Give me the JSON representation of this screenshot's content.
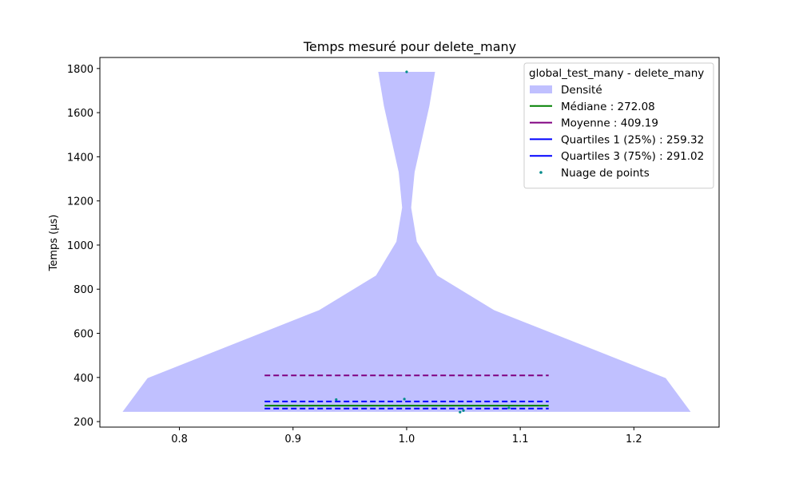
{
  "chart_data": {
    "type": "violin",
    "title": "Temps mesuré pour delete_many",
    "xlabel": "",
    "ylabel": "Temps (µs)",
    "xlim": [
      0.73,
      1.275
    ],
    "ylim": [
      175,
      1850
    ],
    "x_ticks": [
      0.8,
      0.9,
      1.0,
      1.1,
      1.2
    ],
    "x_tick_labels": [
      "0.8",
      "0.9",
      "1.0",
      "1.1",
      "1.2"
    ],
    "y_ticks": [
      200,
      400,
      600,
      800,
      1000,
      1200,
      1400,
      1600,
      1800
    ],
    "y_tick_labels": [
      "200",
      "400",
      "600",
      "800",
      "1000",
      "1200",
      "1400",
      "1600",
      "1800"
    ],
    "grid": false,
    "legend_position": "top-right",
    "legend_title": "global_test_many - delete_many",
    "violin": {
      "center": 1.0,
      "color": "#c0c0ff",
      "profile": [
        {
          "y": 244,
          "half_width": 0.25
        },
        {
          "y": 397,
          "half_width": 0.228
        },
        {
          "y": 705,
          "half_width": 0.077
        },
        {
          "y": 862,
          "half_width": 0.027
        },
        {
          "y": 1015,
          "half_width": 0.009
        },
        {
          "y": 1170,
          "half_width": 0.004
        },
        {
          "y": 1330,
          "half_width": 0.007
        },
        {
          "y": 1630,
          "half_width": 0.02
        },
        {
          "y": 1785,
          "half_width": 0.025
        }
      ]
    },
    "lines": [
      {
        "name": "Médiane : 272.08",
        "value": 272.08,
        "color": "#008000",
        "dashed": false,
        "x_range": [
          0.875,
          1.125
        ]
      },
      {
        "name": "Moyenne : 409.19",
        "value": 409.19,
        "color": "#800080",
        "dashed": true,
        "x_range": [
          0.875,
          1.125
        ]
      },
      {
        "name": "Quartiles 1 (25%) : 259.32",
        "value": 259.32,
        "color": "#0000ff",
        "dashed": true,
        "x_range": [
          0.875,
          1.125
        ]
      },
      {
        "name": "Quartiles 3 (75%) : 291.02",
        "value": 291.02,
        "color": "#0000ff",
        "dashed": true,
        "x_range": [
          0.875,
          1.125
        ]
      }
    ],
    "points": {
      "color": "#008b8b",
      "values": [
        {
          "x": 1.0,
          "y": 1785
        },
        {
          "x": 0.938,
          "y": 300
        },
        {
          "x": 0.998,
          "y": 302
        },
        {
          "x": 1.047,
          "y": 243
        },
        {
          "x": 1.05,
          "y": 250
        },
        {
          "x": 1.09,
          "y": 262
        }
      ]
    },
    "legend": [
      {
        "label": "Densité",
        "kind": "patch",
        "color": "#c0c0ff"
      },
      {
        "label": "Médiane : 272.08",
        "kind": "line",
        "color": "#008000"
      },
      {
        "label": "Moyenne : 409.19",
        "kind": "line",
        "color": "#800080"
      },
      {
        "label": "Quartiles 1 (25%) : 259.32",
        "kind": "line",
        "color": "#0000ff"
      },
      {
        "label": "Quartiles 3 (75%) : 291.02",
        "kind": "line",
        "color": "#0000ff"
      },
      {
        "label": "Nuage de points",
        "kind": "dot",
        "color": "#008b8b"
      }
    ]
  }
}
